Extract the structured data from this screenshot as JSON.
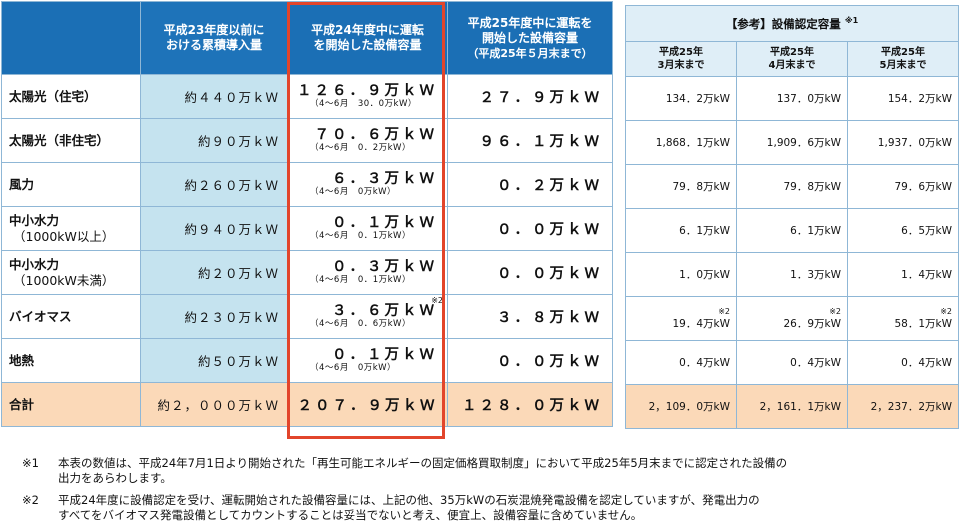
{
  "main_table": {
    "headers": {
      "h23": [
        "平成23年度以前に",
        "おける累積導入量"
      ],
      "h24": [
        "平成24年度中に運転",
        "を開始した設備容量"
      ],
      "h25": [
        "平成25年度中に運転を",
        "開始した設備容量",
        "（平成25年５月末まで）"
      ]
    },
    "rows": [
      {
        "category": [
          "太陽光（住宅）"
        ],
        "cumulative": "約４４０万ｋＷ",
        "fy24": "１２６．９万ｋＷ",
        "fy24_sub": "（4～6月　30．0万kW）",
        "fy25": "２７．９万ｋＷ"
      },
      {
        "category": [
          "太陽光（非住宅）"
        ],
        "cumulative": "約９０万ｋＷ",
        "fy24": "７０．６万ｋＷ",
        "fy24_sub": "（4～6月　0．2万kW）",
        "fy25": "９６．１万ｋＷ"
      },
      {
        "category": [
          "風力"
        ],
        "cumulative": "約２６０万ｋＷ",
        "fy24": "６．３万ｋＷ",
        "fy24_sub": "（4～6月　0万kW）",
        "fy25": "０．２万ｋＷ"
      },
      {
        "category": [
          "中小水力",
          "（1000kW以上）"
        ],
        "cumulative": "約９４０万ｋＷ",
        "fy24": "０．１万ｋＷ",
        "fy24_sub": "（4～6月　0．1万kW）",
        "fy25": "０．０万ｋＷ"
      },
      {
        "category": [
          "中小水力",
          "（1000kW未満）"
        ],
        "cumulative": "約２０万ｋＷ",
        "fy24": "０．３万ｋＷ",
        "fy24_sub": "（4～6月　0．1万kW）",
        "fy25": "０．０万ｋＷ"
      },
      {
        "category": [
          "バイオマス"
        ],
        "cumulative": "約２３０万ｋＷ",
        "fy24": "３．６万ｋＷ",
        "fy24_note": "※2",
        "fy24_sub": "（4～6月　0．6万kW）",
        "fy25": "３．８万ｋＷ"
      },
      {
        "category": [
          "地熱"
        ],
        "cumulative": "約５０万ｋＷ",
        "fy24": "０．１万ｋＷ",
        "fy24_sub": "（4～6月　0万kW）",
        "fy25": "０．０万ｋＷ"
      }
    ],
    "total": {
      "category": "合計",
      "cumulative": "約２，０００万ｋＷ",
      "fy24": "２０７．９万ｋＷ",
      "fy25": "１２８．０万ｋＷ"
    }
  },
  "reference_table": {
    "title": "【参考】設備認定容量",
    "title_note": "※1",
    "columns": [
      [
        "平成25年",
        "3月末まで"
      ],
      [
        "平成25年",
        "4月末まで"
      ],
      [
        "平成25年",
        "5月末まで"
      ]
    ],
    "rows": [
      {
        "values": [
          "134．2万kW",
          "137．0万kW",
          "154．2万kW"
        ]
      },
      {
        "values": [
          "1,868．1万kW",
          "1,909．6万kW",
          "1,937．0万kW"
        ]
      },
      {
        "values": [
          "79．8万kW",
          "79．8万kW",
          "79．6万kW"
        ]
      },
      {
        "values": [
          "6．1万kW",
          "6．1万kW",
          "6．5万kW"
        ]
      },
      {
        "values": [
          "1．0万kW",
          "1．3万kW",
          "1．4万kW"
        ]
      },
      {
        "values": [
          "19．4万kW",
          "26．9万kW",
          "58．1万kW"
        ],
        "notes": [
          "※2",
          "※2",
          "※2"
        ]
      },
      {
        "values": [
          "0．4万kW",
          "0．4万kW",
          "0．4万kW"
        ]
      }
    ],
    "total": [
      "2，109．0万kW",
      "2，161．1万kW",
      "2，237．2万kW"
    ]
  },
  "footnotes": [
    {
      "mark": "※1",
      "lines": [
        "本表の数値は、平成24年7月1日より開始された「再生可能エネルギーの固定価格買取制度」において平成25年5月末までに認定された設備の",
        "出力をあらわします。"
      ]
    },
    {
      "mark": "※2",
      "lines": [
        "平成24年度に設備認定を受け、運転開始された設備容量には、上記の他、35万kWの石炭混焼発電設備を認定していますが、発電出力の",
        "すべてをバイオマス発電設備としてカウントすることは妥当でないと考え、便宜上、設備容量に含めていません。"
      ]
    }
  ],
  "colors": {
    "header_blue": "#1b6fb5",
    "cumulative_bg": "#c5e3ef",
    "total_bg": "#fbd9b8",
    "highlight_red": "#e2452b",
    "ref_header_bg": "#dfeef7"
  }
}
